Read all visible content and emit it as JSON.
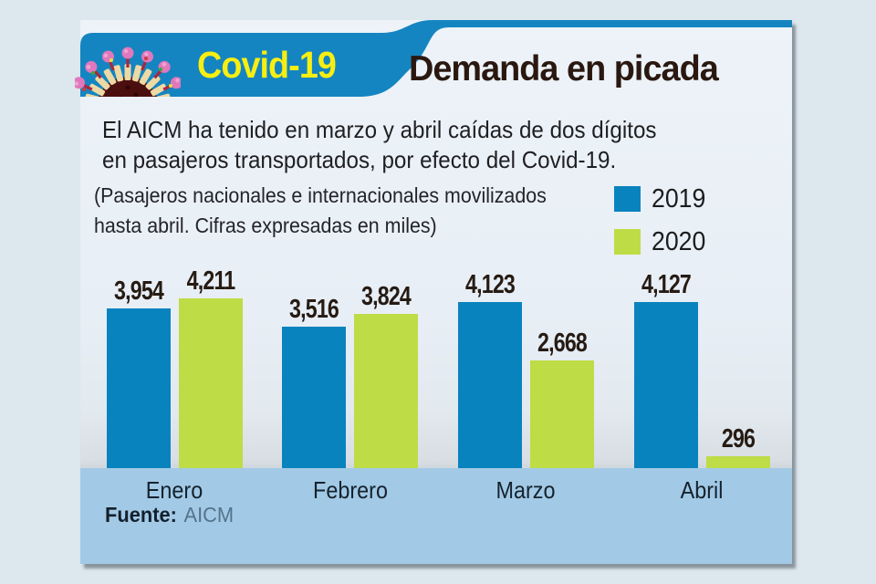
{
  "header": {
    "badge_label": "Covid-19",
    "badge_icon": "coronavirus-icon",
    "title": "Demanda en picada"
  },
  "description": {
    "line1": "El AICM ha tenido en marzo y abril caídas de dos dígitos",
    "line2": "en pasajeros transportados, por efecto del Covid-19.",
    "note_line1": "(Pasajeros nacionales e internacionales movilizados",
    "note_line2": "hasta abril. Cifras expresadas en miles)"
  },
  "legend": [
    {
      "label": "2019",
      "color": "#0983be"
    },
    {
      "label": "2020",
      "color": "#bedc45"
    }
  ],
  "chart_data": {
    "type": "bar",
    "title": "Demanda en picada",
    "subtitle": "Pasajeros nacionales e internacionales movilizados hasta abril. Cifras expresadas en miles",
    "categories": [
      "Enero",
      "Febrero",
      "Marzo",
      "Abril"
    ],
    "series": [
      {
        "name": "2019",
        "color": "#0983be",
        "values": [
          3954,
          3516,
          4123,
          4127
        ]
      },
      {
        "name": "2020",
        "color": "#bedc45",
        "values": [
          4211,
          3824,
          2668,
          296
        ]
      }
    ],
    "value_labels": [
      [
        "3,954",
        "3,516",
        "4,123",
        "4,127"
      ],
      [
        "4,211",
        "3,824",
        "2,668",
        "296"
      ]
    ],
    "xlabel": "",
    "ylabel": "",
    "ylim": [
      0,
      4400
    ],
    "grid": false,
    "legend_position": "top-right"
  },
  "footer": {
    "source_label": "Fuente:",
    "source_value": "AICM"
  },
  "colors": {
    "banner_blue": "#1585c1",
    "badge_text_yellow": "#f7ee12",
    "title_dark": "#2a1810",
    "axis_band_blue": "#a2cae6",
    "card_background": "#e8eff5",
    "page_background": "#dde7ee"
  }
}
